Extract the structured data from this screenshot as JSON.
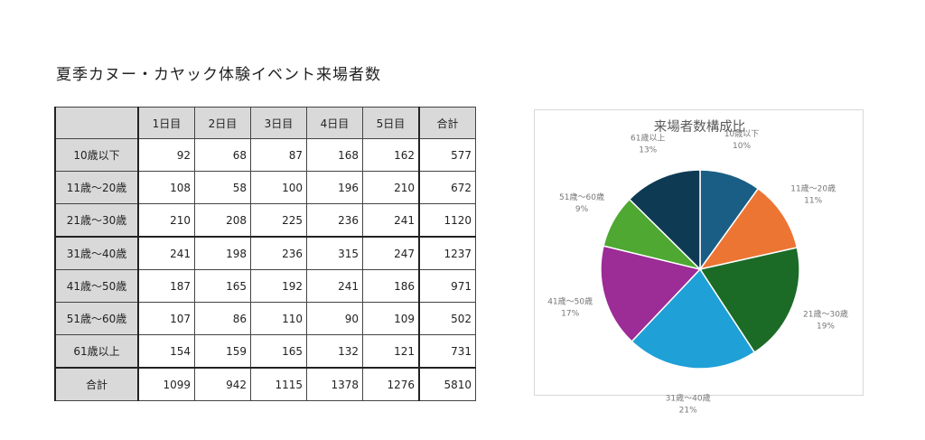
{
  "title": "夏季カヌー・カヤック体験イベント来場者数",
  "table": {
    "corner": "",
    "headers": [
      "1日目",
      "2日目",
      "3日目",
      "4日目",
      "5日目",
      "合計"
    ],
    "rows": [
      {
        "label": "10歳以下",
        "values": [
          92,
          68,
          87,
          168,
          162,
          577
        ]
      },
      {
        "label": "11歳～20歳",
        "values": [
          108,
          58,
          100,
          196,
          210,
          672
        ]
      },
      {
        "label": "21歳～30歳",
        "values": [
          210,
          208,
          225,
          236,
          241,
          1120
        ]
      },
      {
        "label": "31歳～40歳",
        "values": [
          241,
          198,
          236,
          315,
          247,
          1237
        ]
      },
      {
        "label": "41歳～50歳",
        "values": [
          187,
          165,
          192,
          241,
          186,
          971
        ]
      },
      {
        "label": "51歳～60歳",
        "values": [
          107,
          86,
          110,
          90,
          109,
          502
        ]
      },
      {
        "label": "61歳以上",
        "values": [
          154,
          159,
          165,
          132,
          121,
          731
        ]
      },
      {
        "label": "合計",
        "values": [
          1099,
          942,
          1115,
          1378,
          1276,
          5810
        ]
      }
    ]
  },
  "chart_data": {
    "type": "pie",
    "title": "来場者数構成比",
    "categories": [
      "10歳以下",
      "11歳～20歳",
      "21歳～30歳",
      "31歳～40歳",
      "41歳～50歳",
      "51歳～60歳",
      "61歳以上"
    ],
    "values": [
      577,
      672,
      1120,
      1237,
      971,
      502,
      731
    ],
    "percent_labels": [
      "10%",
      "11%",
      "19%",
      "21%",
      "17%",
      "9%",
      "13%"
    ],
    "colors": [
      "#1a5e85",
      "#ed7534",
      "#1b6b27",
      "#1fa0d6",
      "#9c2c96",
      "#4ea832",
      "#0e3a54"
    ],
    "legend": "none",
    "start_angle": "12 o'clock",
    "direction": "clockwise"
  }
}
